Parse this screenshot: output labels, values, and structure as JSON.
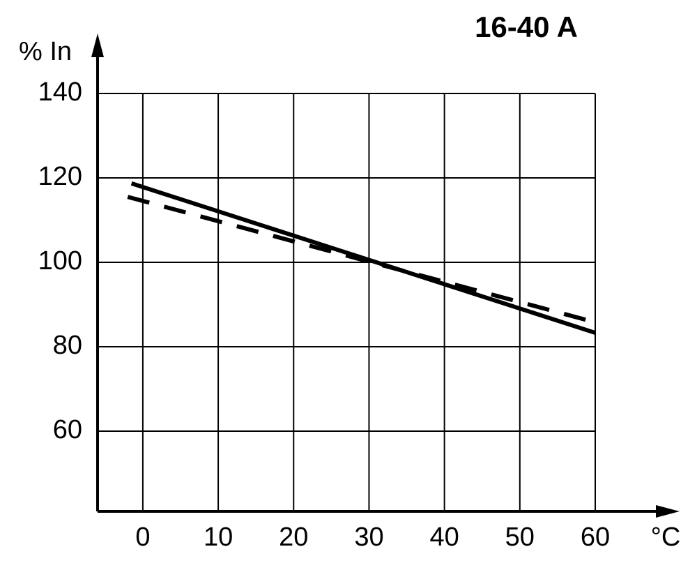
{
  "chart_data": {
    "type": "line",
    "title": "16-40 A",
    "y_label": "% In",
    "x_label": "°C",
    "xlim": [
      -6,
      60
    ],
    "ylim": [
      41,
      140
    ],
    "xticks": [
      0,
      10,
      20,
      30,
      40,
      50,
      60
    ],
    "yticks": [
      60,
      80,
      100,
      120,
      140
    ],
    "grid": true,
    "series": [
      {
        "x": [
          -1.5,
          60
        ],
        "values": [
          118.7,
          83.3
        ],
        "color": "#000000",
        "dash": false
      },
      {
        "x": [
          -2,
          60
        ],
        "values": [
          115.5,
          85.8
        ],
        "color": "#000000",
        "dash": true
      }
    ]
  }
}
